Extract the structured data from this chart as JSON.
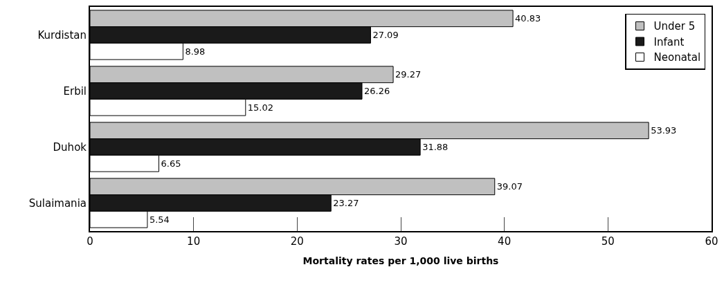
{
  "chart_data": {
    "type": "bar",
    "orientation": "horizontal",
    "xlabel": "Mortality rates per 1,000 live births",
    "categories": [
      "Kurdistan",
      "Erbil",
      "Duhok",
      "Sulaimania"
    ],
    "series": [
      {
        "name": "Under 5",
        "color": "#c0c0c0",
        "values": [
          40.83,
          29.27,
          53.93,
          39.07
        ]
      },
      {
        "name": "Infant",
        "color": "#1a1a1a",
        "values": [
          27.09,
          26.26,
          31.88,
          23.27
        ]
      },
      {
        "name": "Neonatal",
        "color": "#ffffff",
        "values": [
          8.98,
          15.02,
          6.65,
          5.54
        ]
      }
    ],
    "xlim": [
      0,
      60
    ],
    "xticks": [
      0,
      10,
      20,
      30,
      40,
      50,
      60
    ],
    "data_labels": true,
    "legend": "top right"
  }
}
